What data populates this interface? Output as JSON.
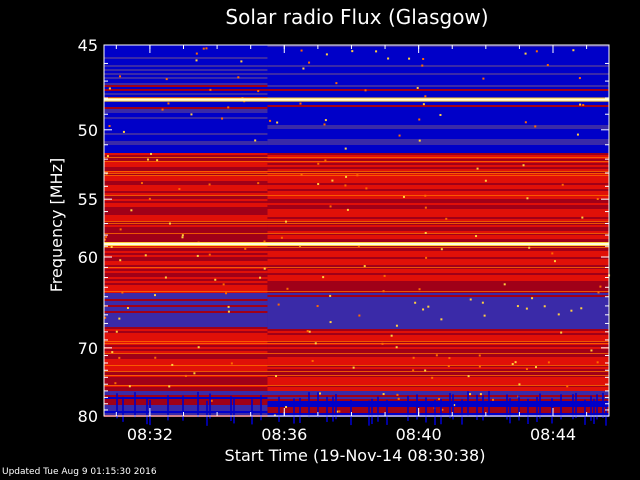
{
  "chart_data": {
    "type": "heatmap",
    "title": "Solar radio Flux (Glasgow)",
    "xlabel": "Start Time (19-Nov-14 08:30:38)",
    "ylabel": "Frequency [MHz]",
    "x_ticks": [
      "08:32",
      "08:36",
      "08:40",
      "08:44"
    ],
    "y_ticks": [
      45,
      50,
      55,
      60,
      70,
      80
    ],
    "ylim": [
      45,
      80
    ],
    "y_scale": "reciprocal",
    "x_range": [
      "08:30:38",
      "08:45:40"
    ],
    "grid": false,
    "colormap": [
      "#0000c8",
      "#3a2aa8",
      "#a00018",
      "#e01008",
      "#ff6a00",
      "#ffd040",
      "#ffffe0"
    ],
    "bright_lines_mhz": [
      48.1,
      58.8
    ],
    "band_profile": [
      {
        "freq_range": [
          45.0,
          47.2
        ],
        "level": "blue"
      },
      {
        "freq_range": [
          47.2,
          48.6
        ],
        "level": "mixed"
      },
      {
        "freq_range": [
          48.6,
          51.5
        ],
        "level": "blue"
      },
      {
        "freq_range": [
          51.5,
          63.5
        ],
        "level": "red"
      },
      {
        "freq_range": [
          63.5,
          67.5
        ],
        "level": "purple"
      },
      {
        "freq_range": [
          67.5,
          76.0
        ],
        "level": "red"
      },
      {
        "freq_range": [
          76.0,
          80.0
        ],
        "level": "purple-blue"
      }
    ]
  },
  "footer": {
    "updated": "Updated Tue Aug  9 01:15:30 2016"
  }
}
